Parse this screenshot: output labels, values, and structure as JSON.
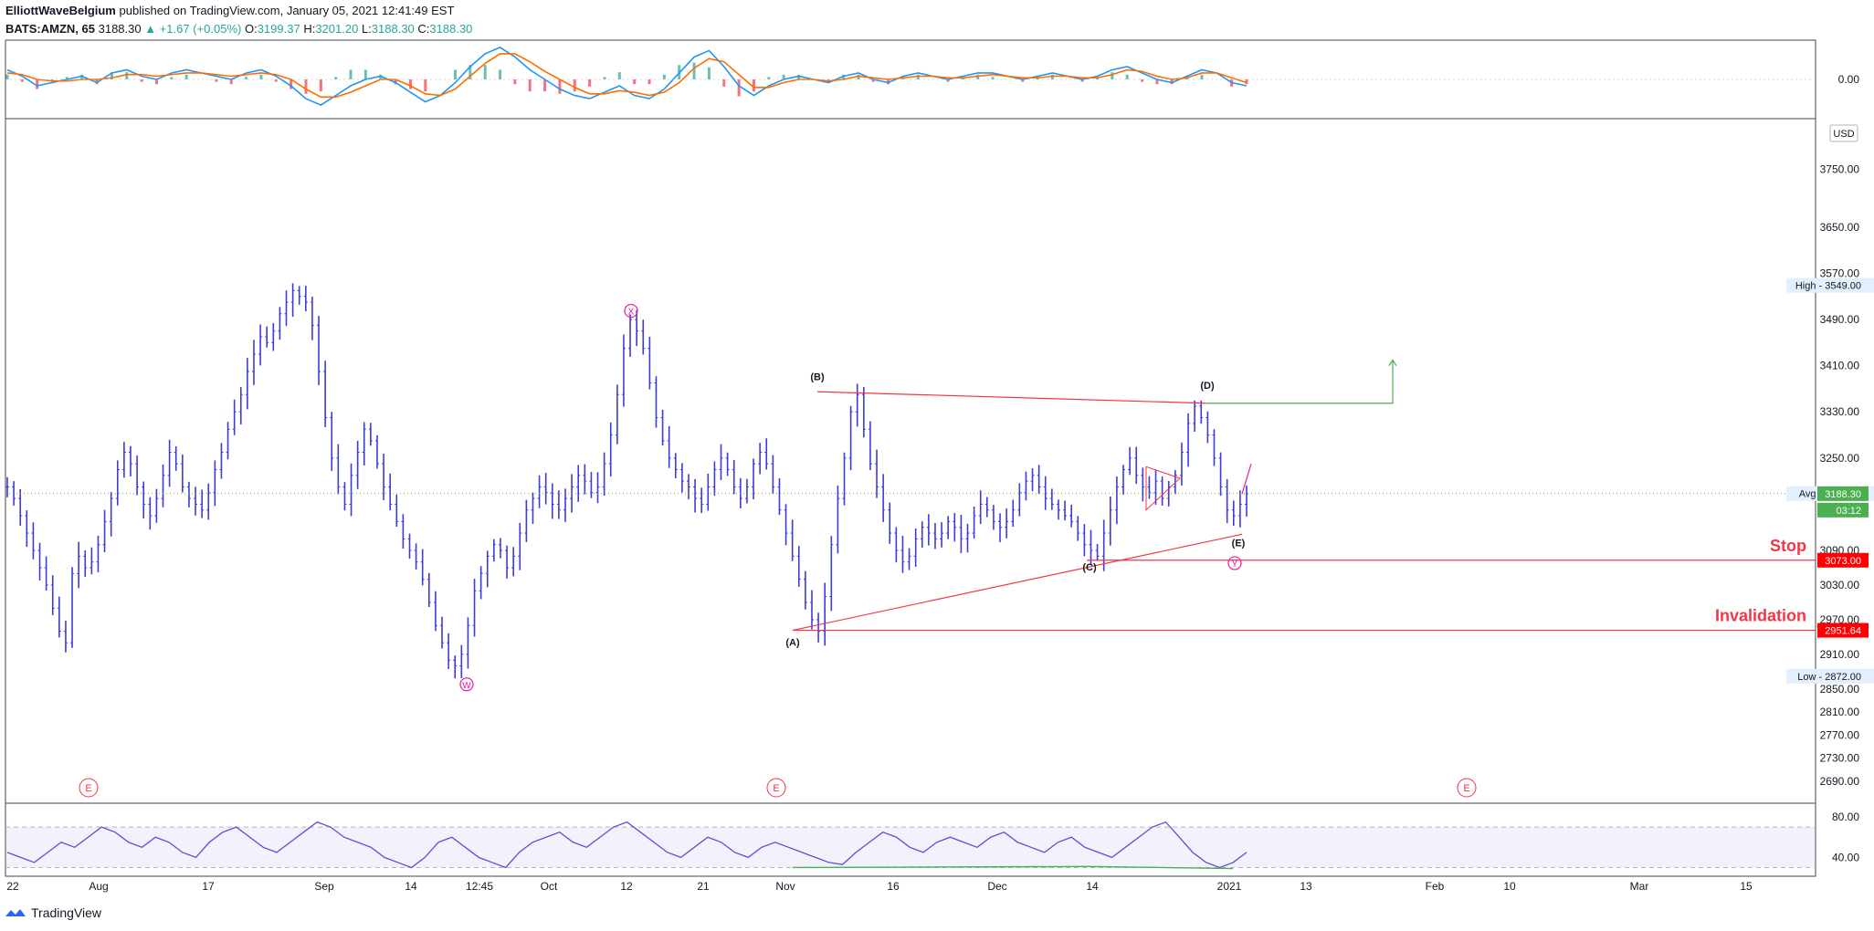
{
  "header": {
    "author": "ElliottWaveBelgium",
    "published": "published on TradingView.com, January 05, 2021 12:41:49 EST",
    "symbol": "BATS:AMZN, 65",
    "last": "3188.30",
    "change": "▲ +1.67 (+0.05%)",
    "o_label": "O:",
    "o": "3199.37",
    "h_label": "H:",
    "h": "3201.20",
    "l_label": "L:",
    "l": "3188.30",
    "c_label": "C:",
    "c": "3188.30"
  },
  "footer": {
    "brand": "TradingView"
  },
  "colors": {
    "price": "#3c3cd6",
    "red": "#f23645",
    "green": "#26a69a",
    "pink": "#e91e99",
    "macd": "#2196f3",
    "signal": "#ff6d00",
    "rsi": "#5a4fd6",
    "green_line": "#4caf50"
  },
  "chart_data": [
    {
      "type": "line",
      "name": "AMZN price",
      "y_ticks": [
        "3750.00",
        "3650.00",
        "3570.00",
        "3490.00",
        "3410.00",
        "3330.00",
        "3250.00",
        "3090.00",
        "3030.00",
        "2970.00",
        "2910.00",
        "2850.00",
        "2810.00",
        "2770.00",
        "2730.00",
        "2690.00"
      ],
      "ylim": [
        2660,
        3830
      ],
      "x_ticks": [
        "22",
        "Aug",
        "17",
        "Sep",
        "14",
        "12:45",
        "Oct",
        "12",
        "21",
        "Nov",
        "16",
        "Dec",
        "14",
        "2021",
        "13",
        "Feb",
        "10",
        "Mar",
        "15"
      ],
      "currency_badge": "USD",
      "price_labels": [
        {
          "text": "High - 3549.00",
          "value": 3549
        },
        {
          "text": "Avg - 3188.52",
          "value": 3188.52
        },
        {
          "text": "3188.30",
          "value": 3188.3
        },
        {
          "text": "03:12",
          "value": 3160
        },
        {
          "text": "3073.00",
          "value": 3073
        },
        {
          "text": "2951.64",
          "value": 2951.64
        },
        {
          "text": "Low - 2872.00",
          "value": 2872
        }
      ],
      "horizontal_lines": [
        {
          "label": "Stop",
          "value": 3073.0
        },
        {
          "label": "Invalidation",
          "value": 2951.64
        }
      ],
      "wave_labels": [
        "(A)",
        "(B)",
        "(C)",
        "(D)",
        "(E)"
      ],
      "circle_labels": [
        "W",
        "X",
        "Y"
      ],
      "event_markers": [
        "E",
        "E",
        "E"
      ],
      "values": [
        3200,
        3180,
        3150,
        3120,
        3090,
        3060,
        3030,
        2990,
        2950,
        2930,
        3050,
        3080,
        3060,
        3070,
        3100,
        3140,
        3180,
        3230,
        3260,
        3240,
        3200,
        3170,
        3150,
        3180,
        3220,
        3260,
        3240,
        3200,
        3180,
        3170,
        3160,
        3190,
        3230,
        3260,
        3300,
        3330,
        3360,
        3400,
        3430,
        3460,
        3450,
        3470,
        3500,
        3520,
        3540,
        3530,
        3520,
        3480,
        3400,
        3320,
        3250,
        3200,
        3170,
        3220,
        3260,
        3300,
        3280,
        3240,
        3200,
        3170,
        3140,
        3110,
        3090,
        3070,
        3040,
        3000,
        2960,
        2930,
        2900,
        2890,
        2910,
        2960,
        3020,
        3050,
        3080,
        3100,
        3090,
        3060,
        3080,
        3120,
        3160,
        3180,
        3200,
        3190,
        3170,
        3160,
        3180,
        3200,
        3220,
        3210,
        3190,
        3200,
        3240,
        3290,
        3360,
        3440,
        3490,
        3470,
        3440,
        3380,
        3320,
        3280,
        3250,
        3230,
        3210,
        3200,
        3180,
        3170,
        3200,
        3230,
        3250,
        3230,
        3200,
        3180,
        3200,
        3240,
        3260,
        3240,
        3200,
        3160,
        3120,
        3080,
        3040,
        3000,
        2970,
        2950,
        3010,
        3100,
        3180,
        3250,
        3330,
        3360,
        3300,
        3240,
        3200,
        3160,
        3120,
        3090,
        3070,
        3080,
        3110,
        3130,
        3120,
        3110,
        3120,
        3140,
        3130,
        3110,
        3120,
        3150,
        3170,
        3160,
        3140,
        3130,
        3140,
        3160,
        3190,
        3210,
        3220,
        3200,
        3180,
        3170,
        3160,
        3150,
        3140,
        3120,
        3100,
        3090,
        3080,
        3120,
        3160,
        3200,
        3230,
        3250,
        3220,
        3200,
        3190,
        3210,
        3180,
        3200,
        3220,
        3260,
        3310,
        3340,
        3320,
        3290,
        3250,
        3200,
        3160,
        3150,
        3170,
        3188.3
      ]
    },
    {
      "type": "line",
      "name": "MACD",
      "y_ticks": [
        "0.00"
      ],
      "ylim": [
        -1,
        1
      ],
      "series": [
        {
          "name": "MACD",
          "values": [
            0.3,
            0.1,
            -0.2,
            -0.1,
            0.0,
            0.1,
            -0.1,
            0.2,
            0.3,
            0.1,
            0.0,
            0.2,
            0.3,
            0.2,
            0.1,
            0.0,
            0.2,
            0.3,
            0.1,
            -0.2,
            -0.6,
            -0.8,
            -0.5,
            -0.2,
            0.0,
            0.1,
            -0.1,
            -0.4,
            -0.7,
            -0.5,
            -0.1,
            0.4,
            0.8,
            1.0,
            0.7,
            0.3,
            0.0,
            -0.3,
            -0.5,
            -0.6,
            -0.4,
            -0.2,
            -0.5,
            -0.6,
            -0.3,
            0.2,
            0.7,
            0.9,
            0.4,
            -0.2,
            -0.5,
            -0.2,
            0.0,
            0.1,
            0.0,
            -0.1,
            0.1,
            0.2,
            0.0,
            -0.1,
            0.1,
            0.2,
            0.1,
            0.0,
            0.1,
            0.2,
            0.2,
            0.1,
            0.0,
            0.1,
            0.2,
            0.1,
            0.0,
            0.1,
            0.3,
            0.4,
            0.2,
            0.0,
            -0.1,
            0.1,
            0.3,
            0.2,
            -0.1,
            -0.2
          ]
        },
        {
          "name": "Signal",
          "values": [
            0.2,
            0.15,
            0.0,
            -0.05,
            -0.05,
            0.0,
            0.0,
            0.05,
            0.15,
            0.15,
            0.1,
            0.15,
            0.2,
            0.2,
            0.15,
            0.1,
            0.15,
            0.2,
            0.15,
            0.0,
            -0.3,
            -0.55,
            -0.55,
            -0.4,
            -0.2,
            0.0,
            0.0,
            -0.2,
            -0.45,
            -0.5,
            -0.3,
            0.1,
            0.5,
            0.8,
            0.8,
            0.55,
            0.25,
            0.0,
            -0.25,
            -0.45,
            -0.45,
            -0.35,
            -0.4,
            -0.5,
            -0.4,
            -0.1,
            0.35,
            0.65,
            0.55,
            0.15,
            -0.25,
            -0.25,
            -0.1,
            0.0,
            0.0,
            -0.05,
            0.0,
            0.1,
            0.05,
            0.0,
            0.05,
            0.1,
            0.1,
            0.05,
            0.05,
            0.1,
            0.15,
            0.1,
            0.05,
            0.05,
            0.1,
            0.1,
            0.05,
            0.05,
            0.15,
            0.3,
            0.25,
            0.1,
            0.0,
            0.05,
            0.2,
            0.2,
            0.05,
            -0.1
          ]
        }
      ]
    },
    {
      "type": "line",
      "name": "RSI",
      "y_ticks": [
        "80.00",
        "40.00"
      ],
      "ylim": [
        25,
        90
      ],
      "values": [
        45,
        40,
        35,
        45,
        55,
        50,
        60,
        70,
        65,
        55,
        50,
        60,
        55,
        45,
        40,
        55,
        65,
        70,
        60,
        50,
        45,
        55,
        65,
        75,
        70,
        60,
        55,
        50,
        40,
        35,
        30,
        40,
        55,
        60,
        50,
        40,
        35,
        30,
        45,
        55,
        60,
        65,
        55,
        50,
        60,
        70,
        75,
        65,
        55,
        45,
        40,
        50,
        60,
        55,
        45,
        40,
        50,
        55,
        50,
        45,
        40,
        35,
        33,
        45,
        55,
        65,
        60,
        50,
        45,
        55,
        60,
        55,
        50,
        60,
        65,
        55,
        50,
        45,
        55,
        60,
        50,
        45,
        40,
        50,
        60,
        70,
        75,
        60,
        45,
        35,
        30,
        35,
        45
      ]
    }
  ]
}
